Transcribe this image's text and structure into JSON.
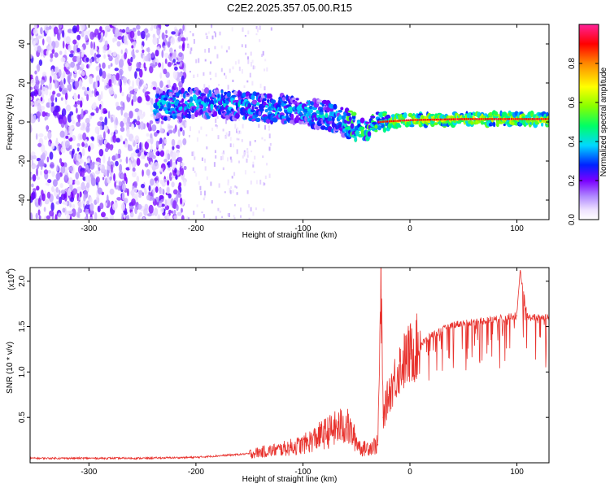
{
  "title": "C2E2.2025.357.05.00.R15",
  "chart_data": [
    {
      "type": "heatmap",
      "xlabel": "Height of straight line (km)",
      "ylabel": "Frequency (Hz)",
      "xlim": [
        -355,
        130
      ],
      "ylim": [
        -50,
        50
      ],
      "xticks": [
        -300,
        -200,
        -100,
        0,
        100
      ],
      "yticks": [
        -40,
        -20,
        0,
        20,
        40
      ],
      "colorbar": {
        "label": "Normalized spectral amplitude",
        "range": [
          0,
          1
        ],
        "ticks": [
          0.0,
          0.2,
          0.4,
          0.6,
          0.8
        ],
        "tick_labels": [
          "0.0",
          "0.2",
          "0.4",
          "0.6",
          "0.8"
        ]
      },
      "ridge": [
        {
          "x": -235,
          "y": 8
        },
        {
          "x": -200,
          "y": 10
        },
        {
          "x": -150,
          "y": 8
        },
        {
          "x": -100,
          "y": 6
        },
        {
          "x": -70,
          "y": 2
        },
        {
          "x": -50,
          "y": -3
        },
        {
          "x": -40,
          "y": -4
        },
        {
          "x": -30,
          "y": 0
        },
        {
          "x": 0,
          "y": 1
        },
        {
          "x": 50,
          "y": 1.5
        },
        {
          "x": 100,
          "y": 1.5
        },
        {
          "x": 130,
          "y": 1.5
        }
      ]
    },
    {
      "type": "line",
      "xlabel": "Height of straight line (km)",
      "ylabel": "SNR (10 * v/v)",
      "y_multiplier": "(x10",
      "y_multiplier_exp": "4",
      "xlim": [
        -355,
        130
      ],
      "ylim": [
        0,
        2.15
      ],
      "xticks": [
        -300,
        -200,
        -100,
        0,
        100
      ],
      "yticks": [
        0.5,
        1.0,
        1.5,
        2.0
      ],
      "ytick_labels": [
        "0.5",
        "1.0",
        "1.5",
        "2.0"
      ],
      "color": "#e8322d",
      "series": [
        {
          "name": "SNR",
          "points": [
            {
              "x": -355,
              "y": 0.05
            },
            {
              "x": -300,
              "y": 0.05
            },
            {
              "x": -250,
              "y": 0.05
            },
            {
              "x": -200,
              "y": 0.06
            },
            {
              "x": -150,
              "y": 0.1
            },
            {
              "x": -120,
              "y": 0.15
            },
            {
              "x": -100,
              "y": 0.2
            },
            {
              "x": -80,
              "y": 0.32
            },
            {
              "x": -60,
              "y": 0.42
            },
            {
              "x": -45,
              "y": 0.15
            },
            {
              "x": -30,
              "y": 0.2
            },
            {
              "x": -27,
              "y": 1.9
            },
            {
              "x": -25,
              "y": 0.5
            },
            {
              "x": -20,
              "y": 0.75
            },
            {
              "x": -10,
              "y": 1.05
            },
            {
              "x": 0,
              "y": 1.2
            },
            {
              "x": 20,
              "y": 1.4
            },
            {
              "x": 40,
              "y": 1.52
            },
            {
              "x": 60,
              "y": 1.55
            },
            {
              "x": 80,
              "y": 1.58
            },
            {
              "x": 100,
              "y": 1.62
            },
            {
              "x": 103,
              "y": 2.1
            },
            {
              "x": 110,
              "y": 1.6
            },
            {
              "x": 130,
              "y": 1.6
            }
          ]
        }
      ]
    }
  ]
}
